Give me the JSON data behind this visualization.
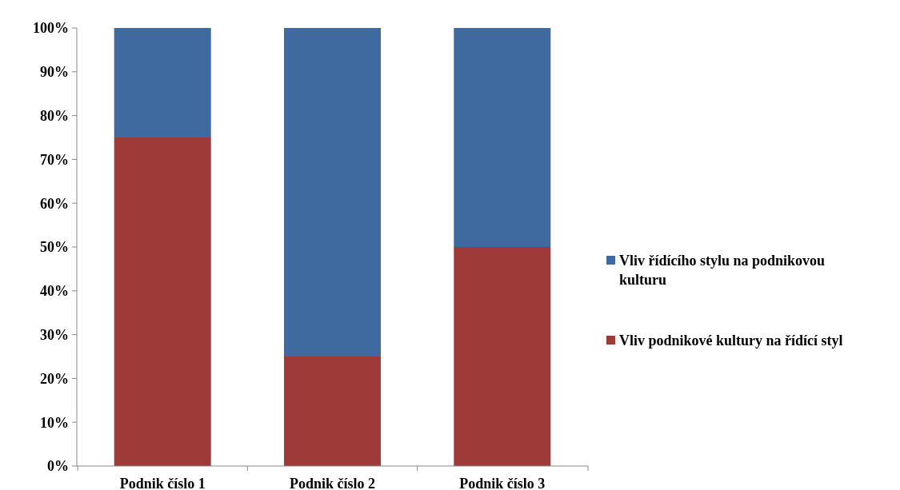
{
  "chart_data": {
    "type": "bar",
    "stacked": true,
    "categories": [
      "Podnik číslo 1",
      "Podnik číslo 2",
      "Podnik číslo 3"
    ],
    "series": [
      {
        "name": "Vliv podnikové kultury na řídící styl",
        "color": "#9e3a38",
        "values": [
          75,
          25,
          50
        ]
      },
      {
        "name": "Vliv řídícího stylu na podnikovou kulturu",
        "color": "#3e6aa0",
        "values": [
          25,
          75,
          50
        ]
      }
    ],
    "ylim": [
      0,
      100
    ],
    "yticks": [
      {
        "value": 0,
        "label": "0%"
      },
      {
        "value": 10,
        "label": "10%"
      },
      {
        "value": 20,
        "label": "20%"
      },
      {
        "value": 30,
        "label": "30%"
      },
      {
        "value": 40,
        "label": "40%"
      },
      {
        "value": 50,
        "label": "50%"
      },
      {
        "value": 60,
        "label": "60%"
      },
      {
        "value": 70,
        "label": "70%"
      },
      {
        "value": 80,
        "label": "80%"
      },
      {
        "value": 90,
        "label": "90%"
      },
      {
        "value": 100,
        "label": "100%"
      }
    ],
    "legend": "right"
  }
}
